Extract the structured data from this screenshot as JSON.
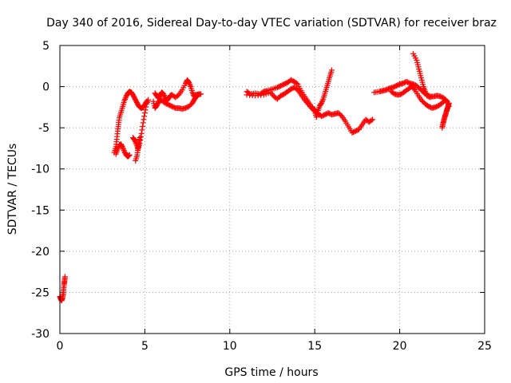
{
  "chart_data": {
    "type": "scatter",
    "title": "Day 340 of 2016, Sidereal Day-to-day VTEC variation (SDTVAR) for receiver braz",
    "xlabel": "GPS time / hours",
    "ylabel": "SDTVAR / TECUs",
    "xlim": [
      0,
      25
    ],
    "ylim": [
      -30,
      5
    ],
    "xticks": [
      0,
      5,
      10,
      15,
      20,
      25
    ],
    "yticks": [
      -30,
      -25,
      -20,
      -15,
      -10,
      -5,
      0,
      5
    ],
    "grid": true,
    "marker": "+",
    "marker_color": "#ff0000",
    "segments": [
      [
        [
          0.0,
          -25.5
        ],
        [
          0.05,
          -25.8
        ],
        [
          0.1,
          -26.0
        ],
        [
          0.15,
          -25.7
        ],
        [
          0.2,
          -25.2
        ],
        [
          0.22,
          -24.6
        ],
        [
          0.25,
          -24.0
        ],
        [
          0.28,
          -23.6
        ],
        [
          0.3,
          -23.1
        ]
      ],
      [
        [
          3.2,
          -8.0
        ],
        [
          3.3,
          -7.3
        ],
        [
          3.35,
          -6.4
        ],
        [
          3.4,
          -5.4
        ],
        [
          3.45,
          -4.6
        ],
        [
          3.5,
          -3.8
        ],
        [
          3.6,
          -3.1
        ],
        [
          3.7,
          -2.4
        ],
        [
          3.8,
          -1.7
        ],
        [
          3.9,
          -1.2
        ],
        [
          4.0,
          -0.8
        ],
        [
          4.1,
          -0.6
        ],
        [
          4.2,
          -0.7
        ],
        [
          4.3,
          -1.0
        ],
        [
          4.4,
          -1.4
        ],
        [
          4.5,
          -1.8
        ],
        [
          4.6,
          -2.2
        ],
        [
          4.7,
          -2.5
        ],
        [
          4.8,
          -2.6
        ],
        [
          4.9,
          -2.5
        ],
        [
          5.0,
          -2.2
        ],
        [
          5.1,
          -1.8
        ]
      ],
      [
        [
          3.3,
          -8.2
        ],
        [
          3.4,
          -7.6
        ],
        [
          3.5,
          -7.1
        ],
        [
          3.6,
          -7.0
        ],
        [
          3.7,
          -7.4
        ],
        [
          3.8,
          -7.9
        ],
        [
          3.9,
          -8.3
        ],
        [
          4.0,
          -8.5
        ],
        [
          4.1,
          -8.3
        ]
      ],
      [
        [
          4.3,
          -6.2
        ],
        [
          4.4,
          -6.5
        ],
        [
          4.5,
          -7.0
        ],
        [
          4.6,
          -7.6
        ],
        [
          4.7,
          -6.9
        ],
        [
          4.8,
          -5.7
        ],
        [
          4.9,
          -4.4
        ],
        [
          5.0,
          -3.2
        ],
        [
          5.1,
          -2.1
        ],
        [
          5.2,
          -1.6
        ]
      ],
      [
        [
          4.45,
          -9.0
        ],
        [
          4.55,
          -8.3
        ],
        [
          4.6,
          -7.5
        ],
        [
          4.65,
          -6.8
        ],
        [
          4.7,
          -6.2
        ]
      ],
      [
        [
          5.6,
          -0.8
        ],
        [
          5.7,
          -1.1
        ],
        [
          5.8,
          -1.4
        ],
        [
          5.9,
          -1.0
        ],
        [
          6.0,
          -0.7
        ],
        [
          6.1,
          -0.9
        ],
        [
          6.2,
          -1.4
        ],
        [
          6.3,
          -1.7
        ],
        [
          6.4,
          -1.4
        ],
        [
          6.5,
          -1.1
        ],
        [
          6.6,
          -1.0
        ],
        [
          6.8,
          -1.3
        ],
        [
          7.0,
          -1.0
        ],
        [
          7.2,
          -0.4
        ],
        [
          7.4,
          0.4
        ],
        [
          7.5,
          0.8
        ],
        [
          7.6,
          0.5
        ],
        [
          7.7,
          0.0
        ],
        [
          7.8,
          -0.7
        ],
        [
          7.9,
          -1.2
        ],
        [
          8.0,
          -1.0
        ],
        [
          8.2,
          -0.9
        ]
      ],
      [
        [
          5.5,
          -1.8
        ],
        [
          5.6,
          -2.6
        ],
        [
          5.7,
          -2.3
        ],
        [
          5.8,
          -1.9
        ],
        [
          5.9,
          -1.6
        ],
        [
          6.0,
          -1.7
        ],
        [
          6.2,
          -2.0
        ],
        [
          6.4,
          -2.2
        ],
        [
          6.6,
          -2.4
        ],
        [
          6.8,
          -2.6
        ],
        [
          7.0,
          -2.6
        ],
        [
          7.2,
          -2.7
        ],
        [
          7.4,
          -2.6
        ],
        [
          7.6,
          -2.4
        ],
        [
          7.8,
          -2.0
        ],
        [
          7.9,
          -1.6
        ],
        [
          8.0,
          -1.3
        ],
        [
          8.1,
          -1.0
        ],
        [
          8.3,
          -0.9
        ]
      ],
      [
        [
          11.0,
          -0.6
        ],
        [
          11.2,
          -0.9
        ],
        [
          11.5,
          -0.8
        ],
        [
          11.8,
          -0.9
        ],
        [
          12.0,
          -0.6
        ],
        [
          12.2,
          -0.5
        ],
        [
          12.5,
          -0.3
        ],
        [
          12.8,
          -0.1
        ],
        [
          13.0,
          0.1
        ],
        [
          13.2,
          0.3
        ],
        [
          13.4,
          0.5
        ],
        [
          13.6,
          0.8
        ],
        [
          13.8,
          0.6
        ],
        [
          14.0,
          0.3
        ],
        [
          14.2,
          -0.5
        ],
        [
          14.4,
          -1.2
        ],
        [
          14.6,
          -1.8
        ],
        [
          14.8,
          -2.4
        ],
        [
          15.0,
          -2.8
        ],
        [
          15.2,
          -3.3
        ],
        [
          15.4,
          -3.6
        ],
        [
          15.6,
          -3.4
        ],
        [
          15.8,
          -3.2
        ],
        [
          16.0,
          -3.4
        ],
        [
          16.2,
          -3.3
        ],
        [
          16.4,
          -3.2
        ],
        [
          16.6,
          -3.6
        ],
        [
          16.8,
          -4.2
        ],
        [
          17.0,
          -4.9
        ],
        [
          17.2,
          -5.6
        ],
        [
          17.4,
          -5.4
        ],
        [
          17.6,
          -5.2
        ],
        [
          17.8,
          -4.6
        ],
        [
          18.0,
          -4.0
        ],
        [
          18.2,
          -4.3
        ],
        [
          18.4,
          -4.0
        ]
      ],
      [
        [
          11.0,
          -1.0
        ],
        [
          11.5,
          -1.1
        ],
        [
          12.0,
          -1.0
        ],
        [
          12.4,
          -0.7
        ],
        [
          12.6,
          -1.2
        ],
        [
          12.8,
          -1.5
        ],
        [
          13.0,
          -1.1
        ],
        [
          13.2,
          -0.9
        ],
        [
          13.4,
          -0.6
        ],
        [
          13.6,
          -0.3
        ],
        [
          13.8,
          -0.1
        ],
        [
          14.0,
          -0.4
        ],
        [
          14.2,
          -1.0
        ],
        [
          14.4,
          -1.6
        ],
        [
          14.6,
          -2.1
        ],
        [
          14.8,
          -2.6
        ],
        [
          15.0,
          -3.0
        ],
        [
          15.1,
          -3.7
        ],
        [
          15.2,
          -2.9
        ],
        [
          15.3,
          -2.3
        ],
        [
          15.4,
          -2.0
        ],
        [
          15.5,
          -1.5
        ],
        [
          15.6,
          -0.8
        ],
        [
          15.7,
          -0.1
        ],
        [
          15.8,
          0.6
        ],
        [
          15.9,
          1.3
        ],
        [
          16.0,
          2.0
        ]
      ],
      [
        [
          18.5,
          -0.7
        ],
        [
          18.8,
          -0.6
        ],
        [
          19.0,
          -0.5
        ],
        [
          19.2,
          -0.4
        ],
        [
          19.4,
          -0.2
        ],
        [
          19.6,
          -0.1
        ],
        [
          19.8,
          0.1
        ],
        [
          20.0,
          0.3
        ],
        [
          20.2,
          0.4
        ],
        [
          20.4,
          0.6
        ],
        [
          20.6,
          0.4
        ],
        [
          20.8,
          0.3
        ],
        [
          21.0,
          0.1
        ],
        [
          21.2,
          -0.3
        ],
        [
          21.4,
          -0.7
        ],
        [
          21.6,
          -1.0
        ],
        [
          21.8,
          -1.2
        ],
        [
          22.0,
          -1.2
        ],
        [
          22.2,
          -1.1
        ],
        [
          22.4,
          -1.2
        ],
        [
          22.6,
          -1.4
        ],
        [
          22.8,
          -1.8
        ],
        [
          22.9,
          -2.4
        ]
      ],
      [
        [
          19.5,
          -0.6
        ],
        [
          19.7,
          -0.9
        ],
        [
          19.9,
          -1.0
        ],
        [
          20.1,
          -0.9
        ],
        [
          20.3,
          -0.6
        ],
        [
          20.5,
          -0.3
        ],
        [
          20.7,
          0.0
        ],
        [
          20.9,
          -0.4
        ],
        [
          21.1,
          -1.1
        ],
        [
          21.3,
          -1.7
        ],
        [
          21.5,
          -2.1
        ],
        [
          21.7,
          -2.4
        ],
        [
          21.9,
          -2.6
        ],
        [
          22.1,
          -2.5
        ],
        [
          22.3,
          -2.3
        ],
        [
          22.5,
          -2.0
        ],
        [
          22.7,
          -1.6
        ]
      ],
      [
        [
          20.8,
          4.0
        ],
        [
          21.0,
          3.2
        ],
        [
          21.1,
          2.4
        ],
        [
          21.2,
          1.6
        ],
        [
          21.3,
          0.8
        ],
        [
          21.4,
          0.0
        ],
        [
          21.5,
          -0.6
        ],
        [
          21.6,
          -1.1
        ],
        [
          21.8,
          -1.3
        ]
      ],
      [
        [
          22.5,
          -5.0
        ],
        [
          22.55,
          -4.5
        ],
        [
          22.6,
          -4.1
        ],
        [
          22.65,
          -3.7
        ],
        [
          22.7,
          -3.4
        ],
        [
          22.75,
          -3.0
        ],
        [
          22.8,
          -2.7
        ],
        [
          22.85,
          -2.4
        ],
        [
          22.9,
          -2.0
        ]
      ]
    ]
  }
}
